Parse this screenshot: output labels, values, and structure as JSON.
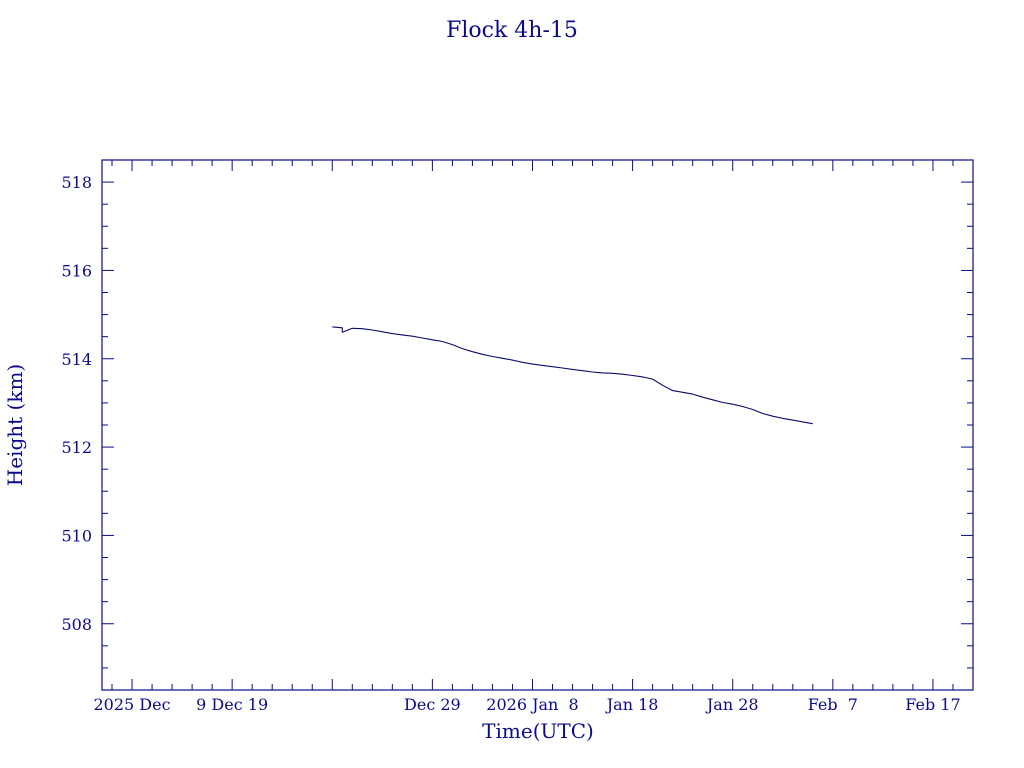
{
  "chart_data": {
    "type": "line",
    "title": "Flock 4h-15",
    "xlabel": "Time(UTC)",
    "ylabel": "Height (km)",
    "ylim": [
      506.5,
      518.5
    ],
    "xlim": [
      "2025-11-26",
      "2026-02-21"
    ],
    "grid": false,
    "colors": {
      "axis": "#0a0a8a",
      "series": "#0a0a6e"
    },
    "x_ticks": [
      {
        "date": "2025-11-29",
        "label": "2025 Dec"
      },
      {
        "date": "2025-12-09",
        "label": "9 Dec 19"
      },
      {
        "date": "2025-12-19",
        "label": ""
      },
      {
        "date": "2025-12-29",
        "label": "Dec 29"
      },
      {
        "date": "2026-01-08",
        "label": "2026 Jan  8"
      },
      {
        "date": "2026-01-18",
        "label": "Jan 18"
      },
      {
        "date": "2026-01-28",
        "label": "Jan 28"
      },
      {
        "date": "2026-02-07",
        "label": "Feb  7"
      },
      {
        "date": "2026-02-17",
        "label": "Feb 17"
      }
    ],
    "y_ticks": [
      508,
      510,
      512,
      514,
      516,
      518
    ],
    "series": [
      {
        "x": [
          "2025-12-19",
          "2025-12-20",
          "2025-12-20",
          "2025-12-21",
          "2025-12-22",
          "2025-12-23",
          "2025-12-24",
          "2025-12-25",
          "2025-12-26",
          "2025-12-27",
          "2025-12-28",
          "2025-12-29",
          "2025-12-30",
          "2025-12-31",
          "2026-01-01",
          "2026-01-02",
          "2026-01-03",
          "2026-01-04",
          "2026-01-05",
          "2026-01-06",
          "2026-01-07",
          "2026-01-08",
          "2026-01-09",
          "2026-01-10",
          "2026-01-11",
          "2026-01-12",
          "2026-01-13",
          "2026-01-14",
          "2026-01-15",
          "2026-01-16",
          "2026-01-17",
          "2026-01-18",
          "2026-01-19",
          "2026-01-20",
          "2026-01-21",
          "2026-01-22",
          "2026-01-23",
          "2026-01-24",
          "2026-01-25",
          "2026-01-26",
          "2026-01-27",
          "2026-01-28",
          "2026-01-29",
          "2026-01-30",
          "2026-01-31",
          "2026-02-01",
          "2026-02-02",
          "2026-02-03",
          "2026-02-04",
          "2026-02-05"
        ],
        "y": [
          514.72,
          514.7,
          514.6,
          514.69,
          514.68,
          514.65,
          514.61,
          514.57,
          514.54,
          514.51,
          514.47,
          514.43,
          514.39,
          514.32,
          514.23,
          514.16,
          514.1,
          514.05,
          514.01,
          513.97,
          513.92,
          513.88,
          513.85,
          513.82,
          513.79,
          513.76,
          513.73,
          513.7,
          513.68,
          513.67,
          513.65,
          513.62,
          513.59,
          513.54,
          513.4,
          513.28,
          513.24,
          513.2,
          513.13,
          513.07,
          513.01,
          512.97,
          512.92,
          512.85,
          512.76,
          512.7,
          512.65,
          512.61,
          512.57,
          512.53
        ]
      }
    ]
  }
}
